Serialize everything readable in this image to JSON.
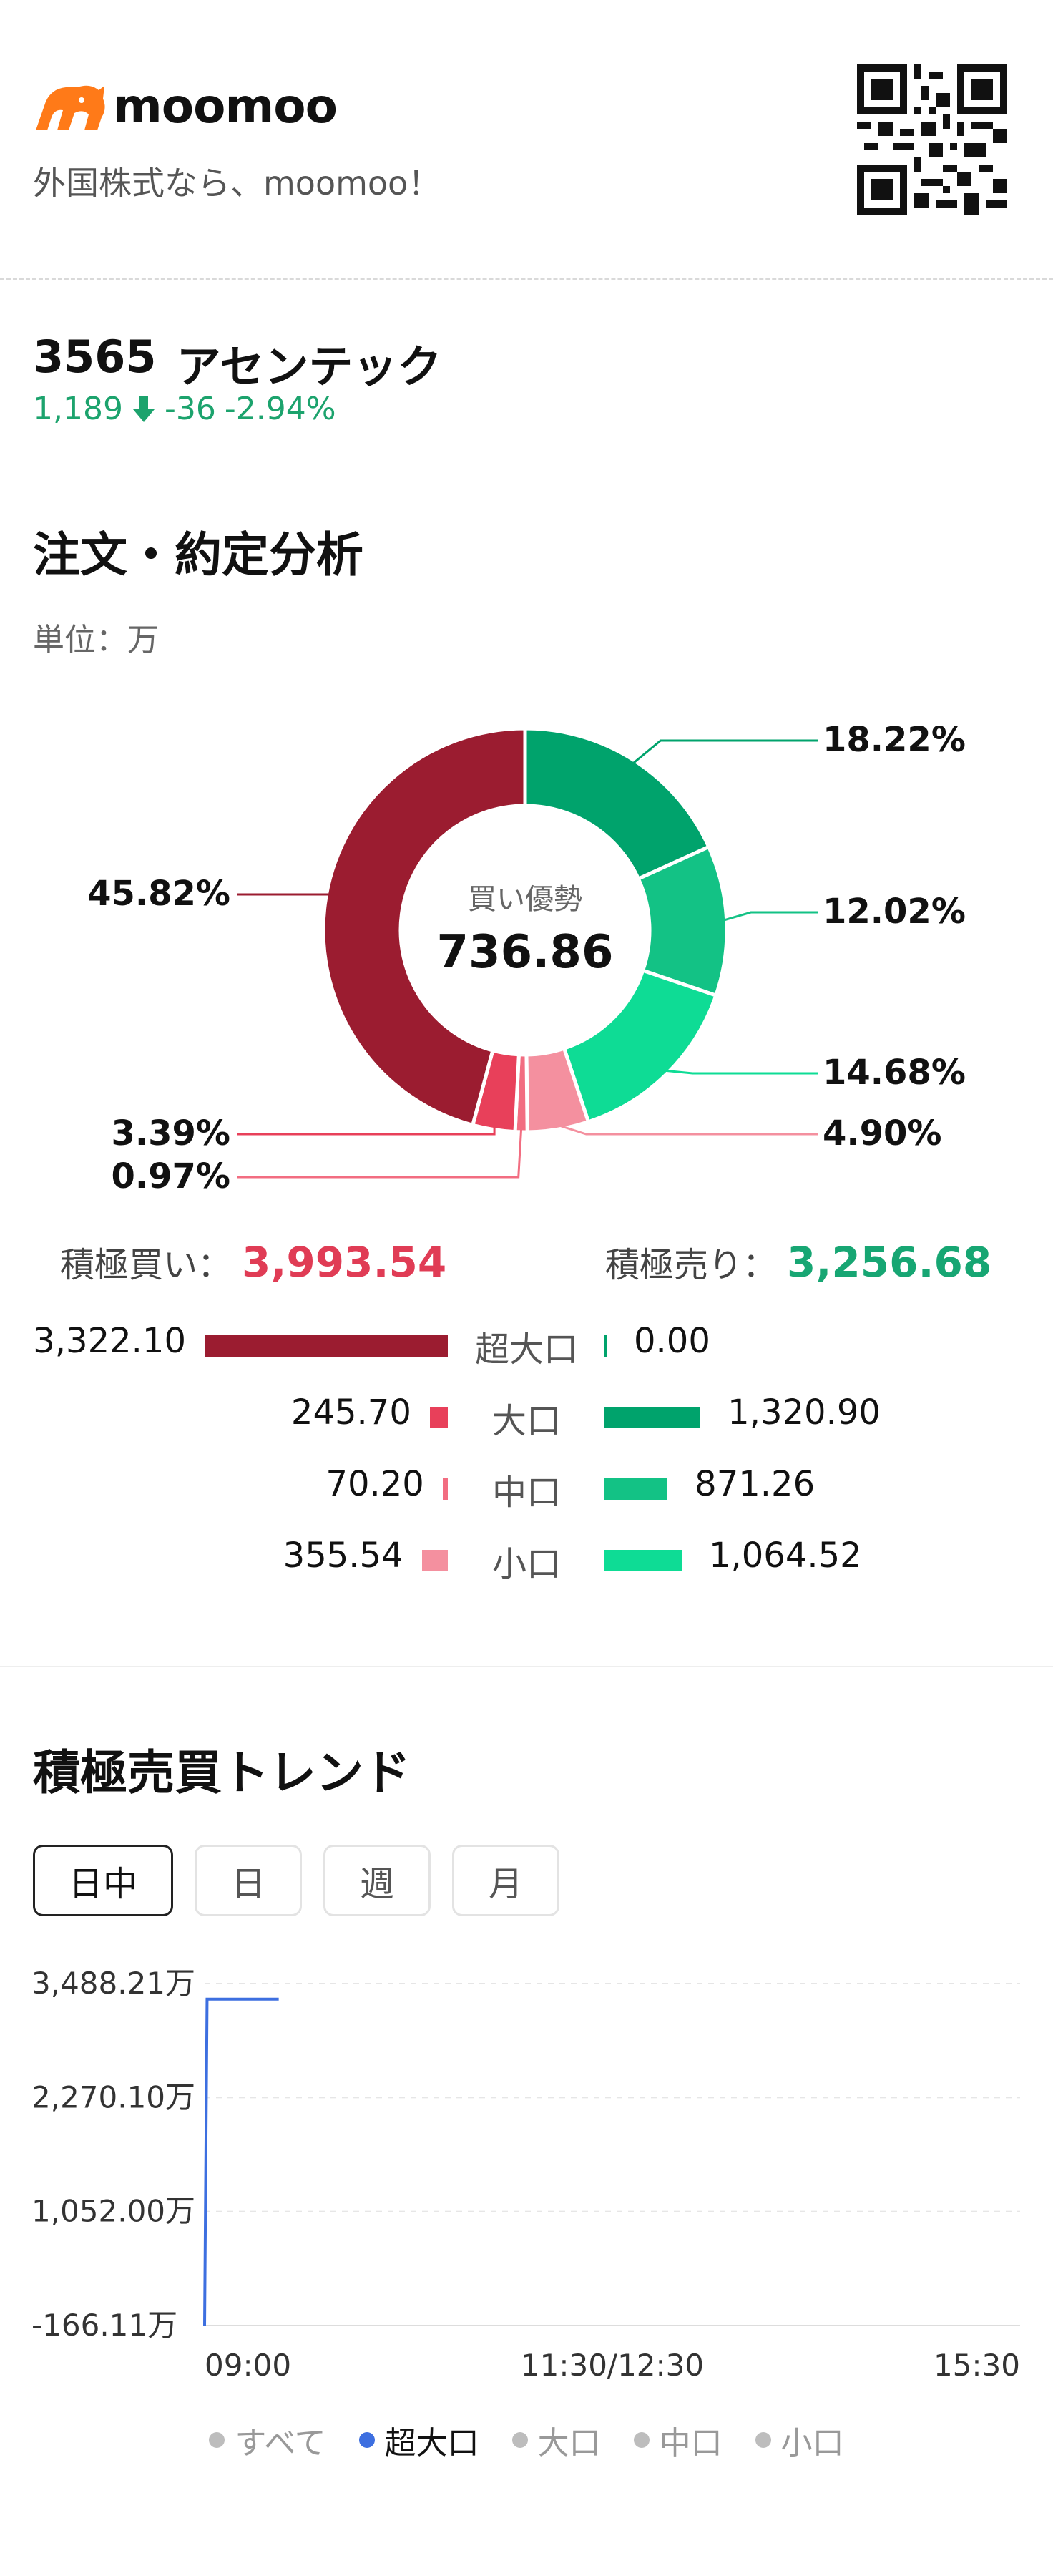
{
  "header": {
    "brand": "moomoo",
    "tagline": "外国株式なら、moomoo！",
    "qr_icon": "qr-code-icon"
  },
  "stock": {
    "code": "3565",
    "name": "アセンテック",
    "price": "1,189",
    "change": "-36",
    "change_pct": "-2.94%",
    "down_color": "#1ca36d"
  },
  "analysis": {
    "title": "注文・約定分析",
    "unit": "単位：万",
    "center_label": "買い優勢",
    "center_value": "736.86",
    "donut": {
      "slices": [
        {
          "pct": 18.22,
          "label": "18.22%",
          "color": "#00a36c"
        },
        {
          "pct": 12.02,
          "label": "12.02%",
          "color": "#13c285"
        },
        {
          "pct": 14.68,
          "label": "14.68%",
          "color": "#0edc95"
        },
        {
          "pct": 4.9,
          "label": "4.90%",
          "color": "#f4909f"
        },
        {
          "pct": 0.97,
          "label": "0.97%",
          "color": "#f26d81"
        },
        {
          "pct": 3.39,
          "label": "3.39%",
          "color": "#e8405a"
        },
        {
          "pct": 45.82,
          "label": "45.82%",
          "color": "#9b1c30"
        }
      ]
    },
    "buy_label": "積極買い：",
    "buy_total": "3,993.54",
    "sell_label": "積極売り：",
    "sell_total": "3,256.68",
    "rows": [
      {
        "category": "超大口",
        "buy": "3,322.10",
        "buy_value": 3322.1,
        "sell": "0.00",
        "sell_value": 0.0,
        "buy_color": "#9b1c30",
        "sell_color": "#00a36c"
      },
      {
        "category": "大口",
        "buy": "245.70",
        "buy_value": 245.7,
        "sell": "1,320.90",
        "sell_value": 1320.9,
        "buy_color": "#e8405a",
        "sell_color": "#00a36c"
      },
      {
        "category": "中口",
        "buy": "70.20",
        "buy_value": 70.2,
        "sell": "871.26",
        "sell_value": 871.26,
        "buy_color": "#f26d81",
        "sell_color": "#13c285"
      },
      {
        "category": "小口",
        "buy": "355.54",
        "buy_value": 355.54,
        "sell": "1,064.52",
        "sell_value": 1064.52,
        "buy_color": "#f4909f",
        "sell_color": "#0edc95"
      }
    ]
  },
  "trend": {
    "title": "積極売買トレンド",
    "tabs": [
      "日中",
      "日",
      "週",
      "月"
    ],
    "active_tab": "日中",
    "legend": [
      {
        "label": "すべて",
        "active": false
      },
      {
        "label": "超大口",
        "active": true
      },
      {
        "label": "大口",
        "active": false
      },
      {
        "label": "中口",
        "active": false
      },
      {
        "label": "小口",
        "active": false
      }
    ]
  },
  "chart_data": {
    "type": "line",
    "title": "積極売買トレンド",
    "y_ticks": [
      "3,488.21万",
      "2,270.10万",
      "1,052.00万",
      "-166.11万"
    ],
    "ylim": [
      -166.11,
      3488.21
    ],
    "x_ticks": [
      "09:00",
      "11:30/12:30",
      "15:30"
    ],
    "x_range": [
      "09:00",
      "15:30"
    ],
    "grid": true,
    "series": [
      {
        "name": "超大口",
        "color": "#3d6fe0",
        "points": [
          {
            "x": "09:00",
            "y": -166.11
          },
          {
            "x": "09:01",
            "y": 3322.1
          },
          {
            "x": "09:30",
            "y": 3322.1
          }
        ]
      }
    ]
  }
}
